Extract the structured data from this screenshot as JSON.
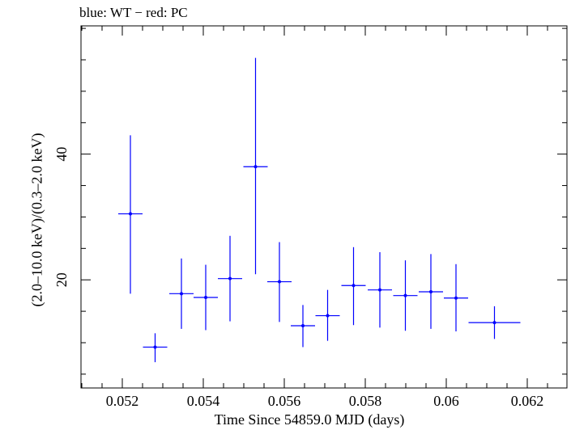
{
  "chart_data": {
    "type": "scatter",
    "title": "blue: WT − red: PC",
    "xlabel": "Time Since 54859.0 MJD (days)",
    "ylabel": "(2.0–10.0 keV)/(0.3–2.0 keV)",
    "xlim": [
      0.05098,
      0.06298
    ],
    "ylim": [
      2.8,
      60.4
    ],
    "x_ticks": [
      0.052,
      0.054,
      0.056,
      0.058,
      0.06,
      0.062
    ],
    "x_tick_labels": [
      "0.052",
      "0.054",
      "0.056",
      "0.058",
      "0.06",
      "0.062"
    ],
    "y_ticks": [
      20,
      40
    ],
    "y_tick_labels": [
      "20",
      "40"
    ],
    "grid": false,
    "series": [
      {
        "name": "WT",
        "color": "#0000ff",
        "points": [
          {
            "x": 0.0522,
            "y": 30.5,
            "xerr": 0.0003,
            "yerr_low": 12.7,
            "yerr_high": 12.5
          },
          {
            "x": 0.05281,
            "y": 9.3,
            "xerr": 0.0003,
            "yerr_low": 2.4,
            "yerr_high": 2.2
          },
          {
            "x": 0.05346,
            "y": 17.8,
            "xerr": 0.0003,
            "yerr_low": 5.6,
            "yerr_high": 5.6
          },
          {
            "x": 0.05406,
            "y": 17.2,
            "xerr": 0.0003,
            "yerr_low": 5.2,
            "yerr_high": 5.2
          },
          {
            "x": 0.05466,
            "y": 20.2,
            "xerr": 0.0003,
            "yerr_low": 6.8,
            "yerr_high": 6.8
          },
          {
            "x": 0.05529,
            "y": 38.0,
            "xerr": 0.0003,
            "yerr_low": 17.1,
            "yerr_high": 17.3
          },
          {
            "x": 0.05588,
            "y": 19.7,
            "xerr": 0.0003,
            "yerr_low": 6.4,
            "yerr_high": 6.3
          },
          {
            "x": 0.05646,
            "y": 12.7,
            "xerr": 0.0003,
            "yerr_low": 3.4,
            "yerr_high": 3.3
          },
          {
            "x": 0.05707,
            "y": 14.3,
            "xerr": 0.0003,
            "yerr_low": 4.0,
            "yerr_high": 4.1
          },
          {
            "x": 0.05771,
            "y": 19.1,
            "xerr": 0.0003,
            "yerr_low": 6.3,
            "yerr_high": 6.1
          },
          {
            "x": 0.05836,
            "y": 18.4,
            "xerr": 0.0003,
            "yerr_low": 6.0,
            "yerr_high": 6.0
          },
          {
            "x": 0.05899,
            "y": 17.5,
            "xerr": 0.0003,
            "yerr_low": 5.6,
            "yerr_high": 5.6
          },
          {
            "x": 0.05962,
            "y": 18.1,
            "xerr": 0.0003,
            "yerr_low": 5.9,
            "yerr_high": 6.0
          },
          {
            "x": 0.06024,
            "y": 17.1,
            "xerr": 0.0003,
            "yerr_low": 5.3,
            "yerr_high": 5.4
          },
          {
            "x": 0.06119,
            "y": 13.2,
            "xerr": 0.00064,
            "yerr_low": 2.6,
            "yerr_high": 2.6
          }
        ]
      }
    ]
  }
}
